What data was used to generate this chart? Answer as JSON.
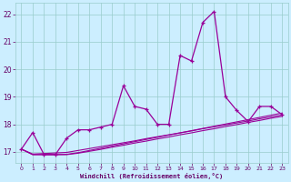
{
  "title": "",
  "xlabel": "Windchill (Refroidissement éolien,°C)",
  "ylabel": "",
  "background_color": "#cceeff",
  "grid_color": "#99cccc",
  "line_color": "#990099",
  "xlim": [
    -0.5,
    23.5
  ],
  "ylim": [
    16.6,
    22.4
  ],
  "yticks": [
    17,
    18,
    19,
    20,
    21,
    22
  ],
  "xticks": [
    0,
    1,
    2,
    3,
    4,
    5,
    6,
    7,
    8,
    9,
    10,
    11,
    12,
    13,
    14,
    15,
    16,
    17,
    18,
    19,
    20,
    21,
    22,
    23
  ],
  "series": [
    {
      "x": [
        0,
        1,
        2,
        3,
        4,
        5,
        6,
        7,
        8,
        9,
        10,
        11,
        12,
        13,
        14,
        15,
        16,
        17,
        18,
        19,
        20,
        21,
        22,
        23
      ],
      "y": [
        17.1,
        17.7,
        16.9,
        16.9,
        17.5,
        17.8,
        17.8,
        17.9,
        18.0,
        19.4,
        18.65,
        18.55,
        18.0,
        18.0,
        20.5,
        20.3,
        21.7,
        22.1,
        19.0,
        18.5,
        18.1,
        18.65,
        18.65,
        18.35
      ],
      "marker": true
    },
    {
      "x": [
        0,
        1,
        2,
        3,
        4,
        5,
        6,
        7,
        8,
        9,
        10,
        11,
        12,
        13,
        14,
        15,
        16,
        17,
        18,
        19,
        20,
        21,
        22,
        23
      ],
      "y": [
        17.1,
        16.92,
        16.94,
        16.96,
        16.98,
        17.05,
        17.12,
        17.19,
        17.26,
        17.33,
        17.4,
        17.48,
        17.55,
        17.62,
        17.69,
        17.76,
        17.84,
        17.91,
        17.98,
        18.05,
        18.12,
        18.2,
        18.27,
        18.34
      ],
      "marker": false
    },
    {
      "x": [
        0,
        1,
        2,
        3,
        4,
        5,
        6,
        7,
        8,
        9,
        10,
        11,
        12,
        13,
        14,
        15,
        16,
        17,
        18,
        19,
        20,
        21,
        22,
        23
      ],
      "y": [
        17.1,
        16.9,
        16.9,
        16.9,
        16.91,
        16.97,
        17.05,
        17.13,
        17.21,
        17.29,
        17.37,
        17.45,
        17.53,
        17.61,
        17.69,
        17.77,
        17.85,
        17.93,
        18.01,
        18.09,
        18.17,
        18.25,
        18.33,
        18.41
      ],
      "marker": false
    },
    {
      "x": [
        0,
        1,
        2,
        3,
        4,
        5,
        6,
        7,
        8,
        9,
        10,
        11,
        12,
        13,
        14,
        15,
        16,
        17,
        18,
        19,
        20,
        21,
        22,
        23
      ],
      "y": [
        17.1,
        16.9,
        16.9,
        16.9,
        16.9,
        16.95,
        17.02,
        17.09,
        17.17,
        17.24,
        17.32,
        17.39,
        17.47,
        17.54,
        17.62,
        17.69,
        17.77,
        17.84,
        17.92,
        17.99,
        18.07,
        18.14,
        18.22,
        18.29
      ],
      "marker": false
    }
  ]
}
